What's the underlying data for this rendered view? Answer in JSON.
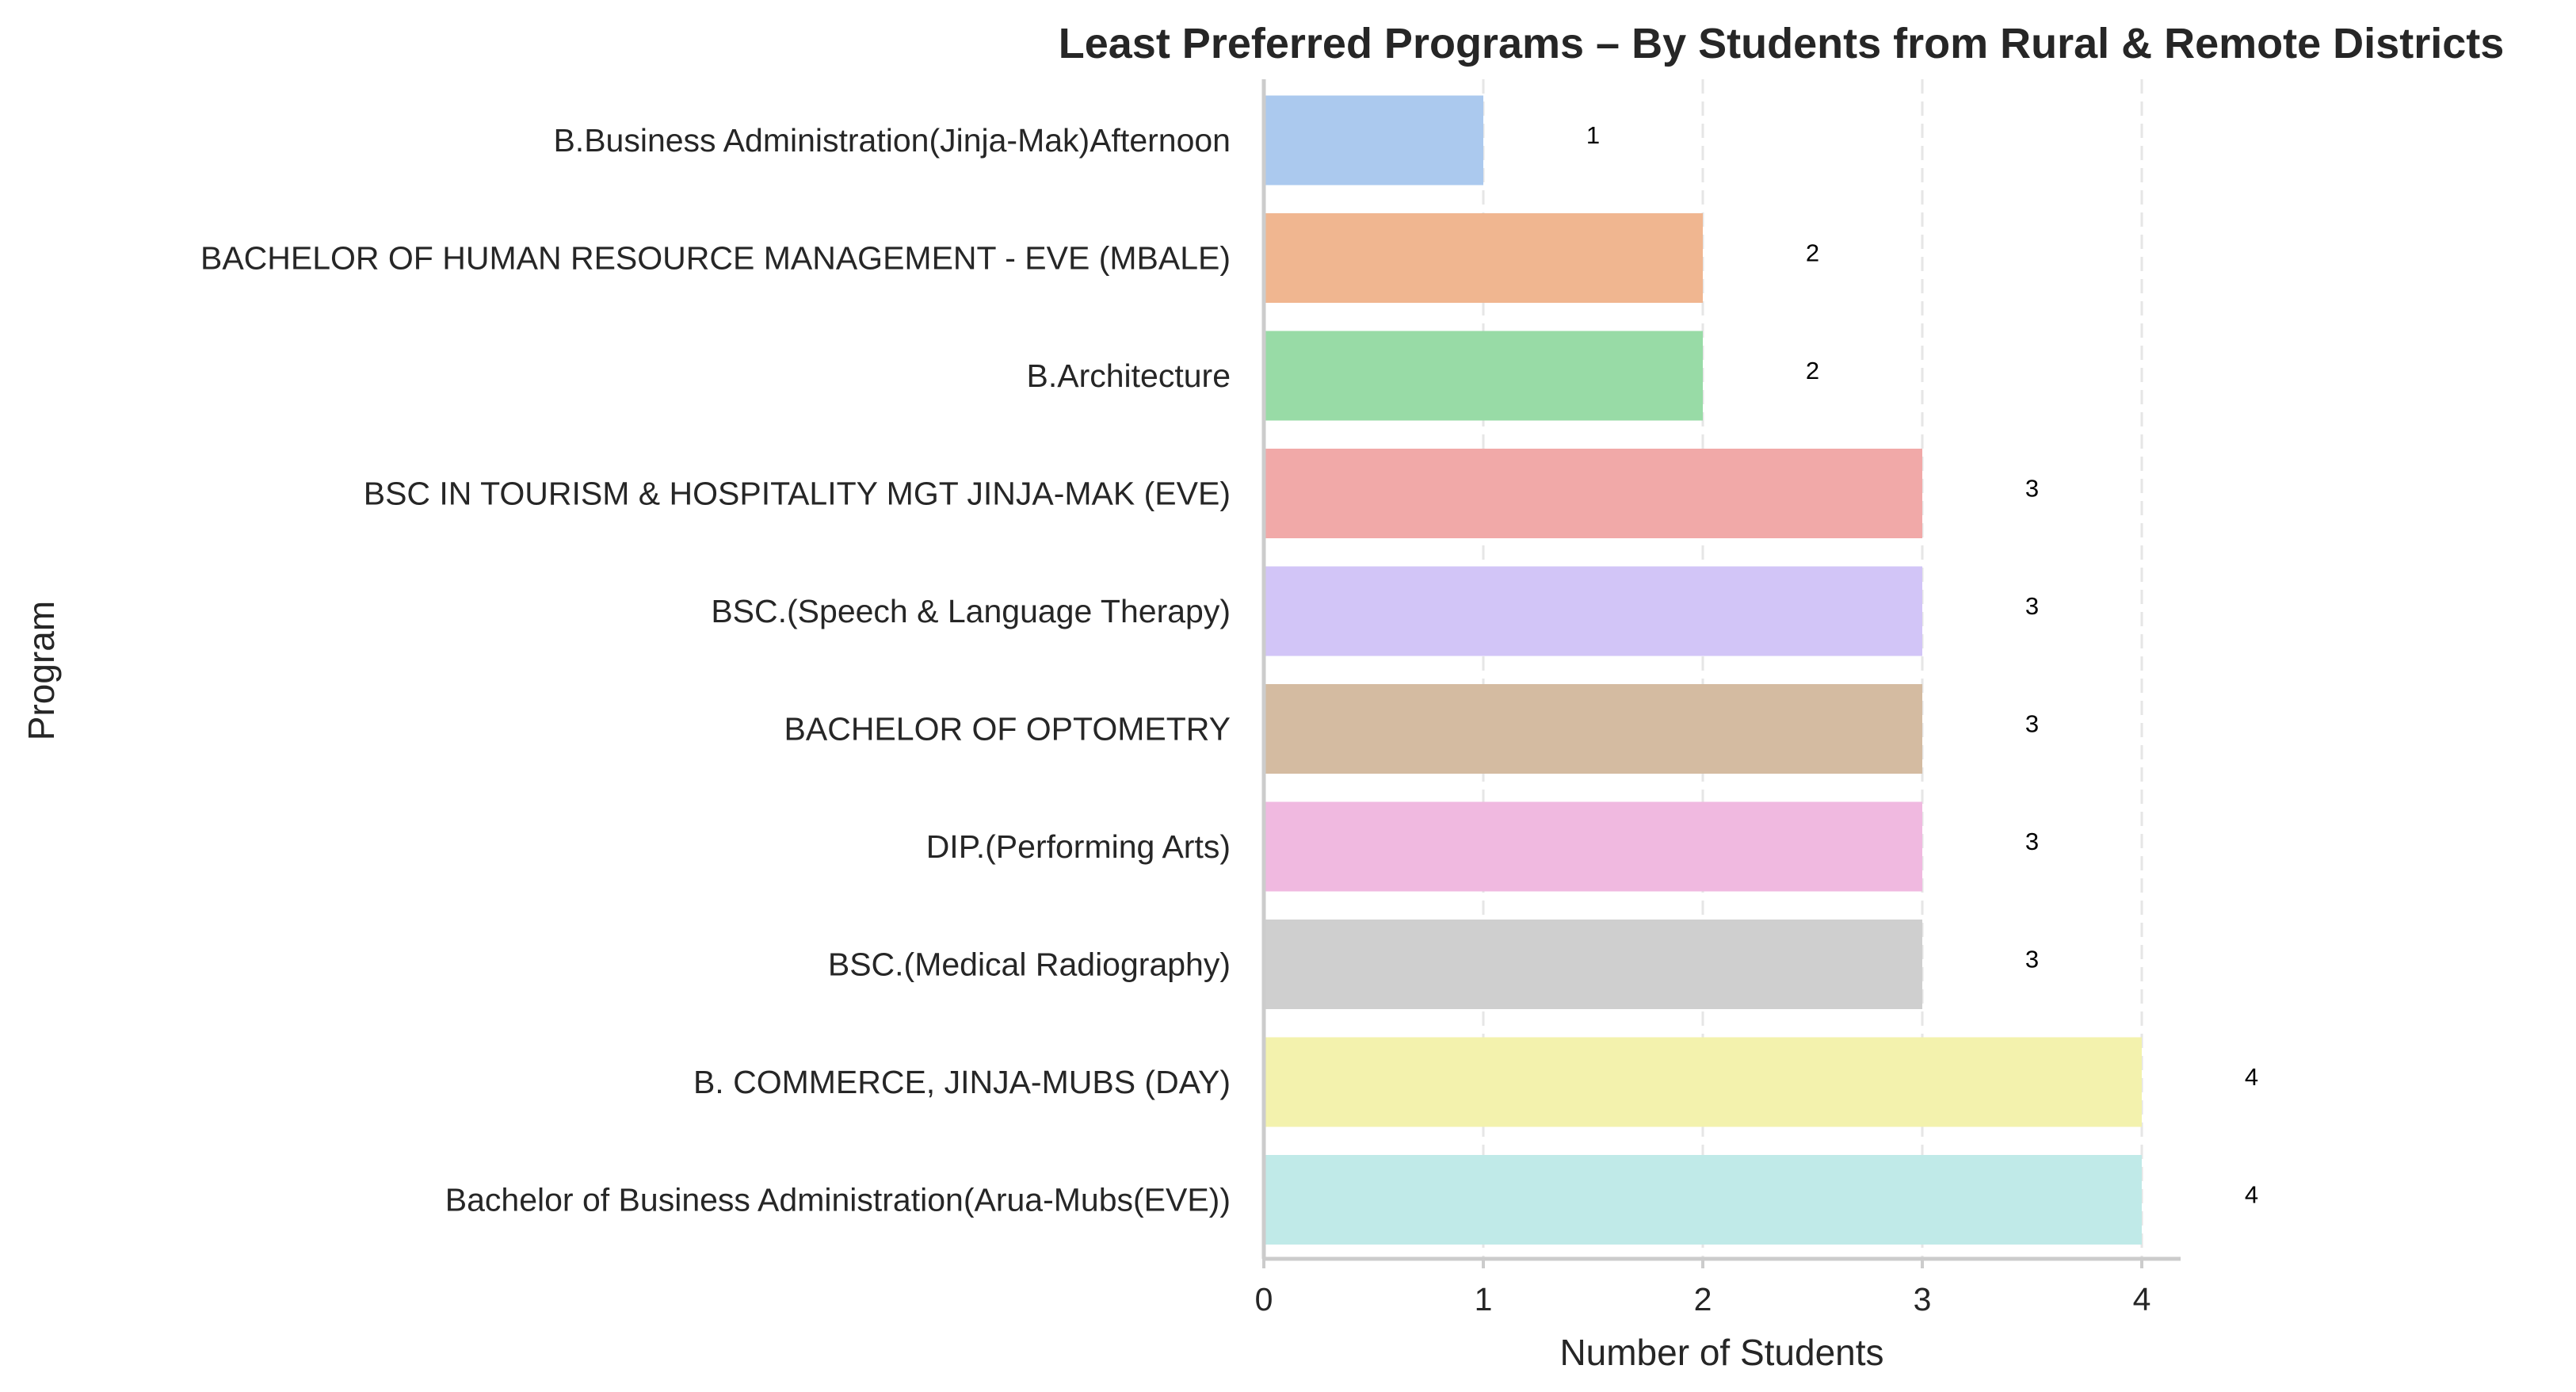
{
  "chart_data": {
    "type": "bar",
    "orientation": "horizontal",
    "title": "Least Preferred Programs – By Students from Rural & Remote Districts",
    "xlabel": "Number of Students",
    "ylabel": "Program",
    "xlim": [
      0,
      4.2
    ],
    "xticks": [
      0,
      1,
      2,
      3,
      4
    ],
    "grid": "vertical dashed",
    "categories": [
      "B.Business Administration(Jinja-Mak)Afternoon",
      "BACHELOR OF HUMAN RESOURCE MANAGEMENT - EVE (MBALE)",
      "B.Architecture",
      "BSC IN TOURISM & HOSPITALITY MGT JINJA-MAK (EVE)",
      "BSC.(Speech & Language Therapy)",
      "BACHELOR OF OPTOMETRY",
      "DIP.(Performing Arts)",
      "BSC.(Medical Radiography)",
      "B. COMMERCE, JINJA-MUBS (DAY)",
      "Bachelor of Business Administration(Arua-Mubs(EVE))"
    ],
    "values": [
      1,
      2,
      2,
      3,
      3,
      3,
      3,
      3,
      4,
      4
    ],
    "data_labels": [
      "1",
      "2",
      "2",
      "3",
      "3",
      "3",
      "3",
      "3",
      "4",
      "4"
    ],
    "colors": [
      "#abc9ee",
      "#f0b690",
      "#98dba6",
      "#f1a9a8",
      "#d2c5f7",
      "#d4bba1",
      "#f0b9e0",
      "#cfcfcf",
      "#f3f2ad",
      "#c0eae8"
    ]
  }
}
